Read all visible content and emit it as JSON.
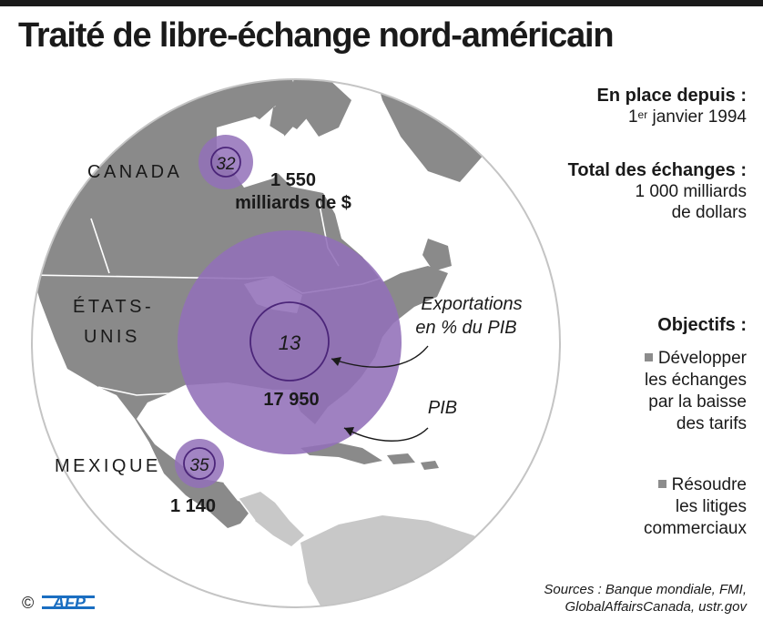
{
  "title": "Traité de libre-échange nord-américain",
  "countries": {
    "canada": {
      "name": "CANADA",
      "export_pct": "32",
      "gdp_label": "1 550",
      "gdp_unit": "milliards de $"
    },
    "usa": {
      "name_line1": "ÉTATS-",
      "name_line2": "UNIS",
      "export_pct": "13",
      "gdp_label": "17 950"
    },
    "mexico": {
      "name": "MEXIQUE",
      "export_pct": "35",
      "gdp_label": "1 140"
    }
  },
  "legend": {
    "exports_line1": "Exportations",
    "exports_line2": "en % du PIB",
    "gdp": "PIB"
  },
  "sidebar": {
    "since_heading": "En place depuis :",
    "since_day": "1",
    "since_sup": "er",
    "since_rest": " janvier 1994",
    "total_heading": "Total des échanges :",
    "total_line1": "1 000 milliards",
    "total_line2": "de dollars",
    "objectives_heading": "Objectifs :",
    "objectives": [
      {
        "lines": [
          "Développer",
          "les échanges",
          "par la baisse",
          "des tarifs"
        ]
      },
      {
        "lines": [
          "Résoudre",
          "les litiges",
          "commerciaux"
        ]
      }
    ]
  },
  "sources": {
    "line1": "Sources : Banque mondiale, FMI,",
    "line2": "GlobalAffairsCanada, ustr.gov"
  },
  "credit": {
    "copyright": "©",
    "agency": "AFP"
  },
  "colors": {
    "land": "#8a8a8a",
    "land_other": "#c8c8c8",
    "borders": "#ffffff",
    "circle_fill": "#9270b8",
    "circle_stroke": "#4b2579",
    "text": "#1a1a1a"
  }
}
